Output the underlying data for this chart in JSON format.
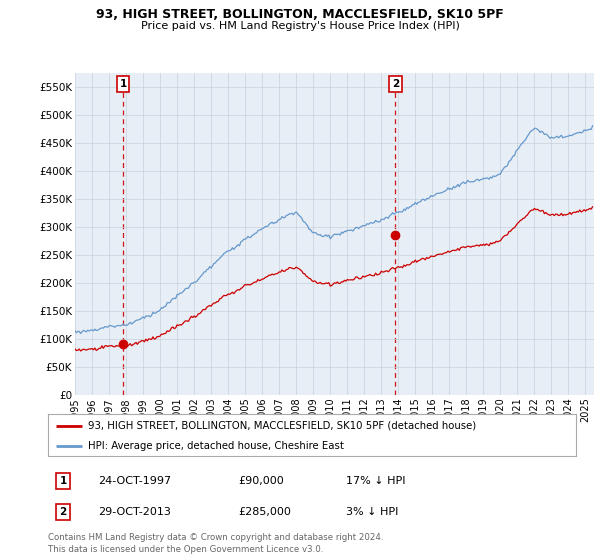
{
  "title": "93, HIGH STREET, BOLLINGTON, MACCLESFIELD, SK10 5PF",
  "subtitle": "Price paid vs. HM Land Registry's House Price Index (HPI)",
  "legend_line1": "93, HIGH STREET, BOLLINGTON, MACCLESFIELD, SK10 5PF (detached house)",
  "legend_line2": "HPI: Average price, detached house, Cheshire East",
  "annotation1_label": "1",
  "annotation1_date": "24-OCT-1997",
  "annotation1_price": "£90,000",
  "annotation1_hpi": "17% ↓ HPI",
  "annotation2_label": "2",
  "annotation2_date": "29-OCT-2013",
  "annotation2_price": "£285,000",
  "annotation2_hpi": "3% ↓ HPI",
  "footer": "Contains HM Land Registry data © Crown copyright and database right 2024.\nThis data is licensed under the Open Government Licence v3.0.",
  "sale1_year": 1997.82,
  "sale1_value": 90000,
  "sale2_year": 2013.83,
  "sale2_value": 285000,
  "hpi_color": "#6699cc",
  "price_color": "#cc0000",
  "dashed_line_color": "#cc0000",
  "ylim": [
    0,
    575000
  ],
  "xlim_start": 1995.0,
  "xlim_end": 2025.5,
  "yticks": [
    0,
    50000,
    100000,
    150000,
    200000,
    250000,
    300000,
    350000,
    400000,
    450000,
    500000,
    550000
  ],
  "ytick_labels": [
    "£0",
    "£50K",
    "£100K",
    "£150K",
    "£200K",
    "£250K",
    "£300K",
    "£350K",
    "£400K",
    "£450K",
    "£500K",
    "£550K"
  ],
  "background_color": "#ffffff",
  "plot_bg_color": "#e8eef6"
}
